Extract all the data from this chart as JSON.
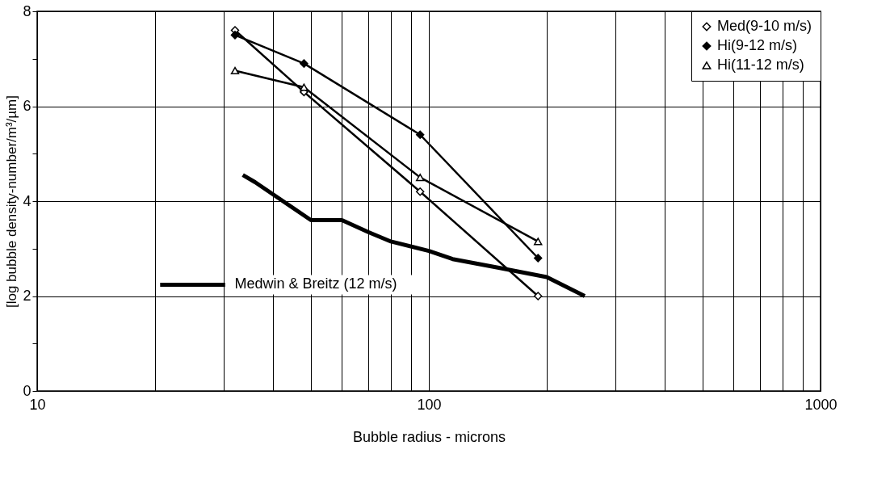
{
  "chart_data": {
    "type": "line",
    "xlabel": "Bubble radius - microns",
    "ylabel": "[log bubble density-number/m³/µm]",
    "log": "x",
    "xlim": [
      10,
      1000
    ],
    "ylim": [
      0,
      8
    ],
    "xticks": [
      10,
      {
        "value": 20,
        "label": null
      },
      {
        "value": 30,
        "label": null
      },
      {
        "value": 40,
        "label": null
      },
      {
        "value": 50,
        "label": null
      },
      {
        "value": 60,
        "label": null
      },
      {
        "value": 70,
        "label": null
      },
      {
        "value": 80,
        "label": null
      },
      {
        "value": 90,
        "label": null
      },
      100,
      {
        "value": 200,
        "label": null
      },
      {
        "value": 300,
        "label": null
      },
      {
        "value": 400,
        "label": null
      },
      {
        "value": 500,
        "label": null
      },
      {
        "value": 600,
        "label": null
      },
      {
        "value": 700,
        "label": null
      },
      {
        "value": 800,
        "label": null
      },
      {
        "value": 900,
        "label": null
      },
      1000
    ],
    "yticks": [
      0,
      {
        "value": 1,
        "label": null
      },
      2,
      {
        "value": 3,
        "label": null
      },
      4,
      {
        "value": 5,
        "label": null
      },
      6,
      {
        "value": 7,
        "label": null
      },
      8
    ],
    "grid": true,
    "legend": "top right",
    "series": [
      {
        "name": "Med(9-10 m/s)",
        "color": "#000000",
        "marker": "diamond",
        "x": [
          32,
          48,
          95,
          190
        ],
        "values": [
          7.6,
          6.3,
          4.2,
          2.0
        ]
      },
      {
        "name": "Hi(9-12 m/s)",
        "color": "#000000",
        "marker": "diamond",
        "x": [
          32,
          48,
          95,
          190
        ],
        "values": [
          7.5,
          6.9,
          5.4,
          2.8
        ]
      },
      {
        "name": "Hi(11-12 m/s)",
        "color": "#000000",
        "marker": "triangle",
        "x": [
          32,
          48,
          95,
          190
        ],
        "values": [
          6.75,
          6.4,
          4.5,
          3.15
        ]
      },
      {
        "name": "Medwin & Breitz (12 m/s)",
        "color": "#000000",
        "marker": "none",
        "x": [
          33.5,
          36,
          50,
          60,
          70,
          80,
          100,
          115,
          150,
          200,
          250
        ],
        "values": [
          4.55,
          4.4,
          3.6,
          3.6,
          3.35,
          3.15,
          2.95,
          2.78,
          2.6,
          2.4,
          2.0
        ]
      }
    ]
  }
}
